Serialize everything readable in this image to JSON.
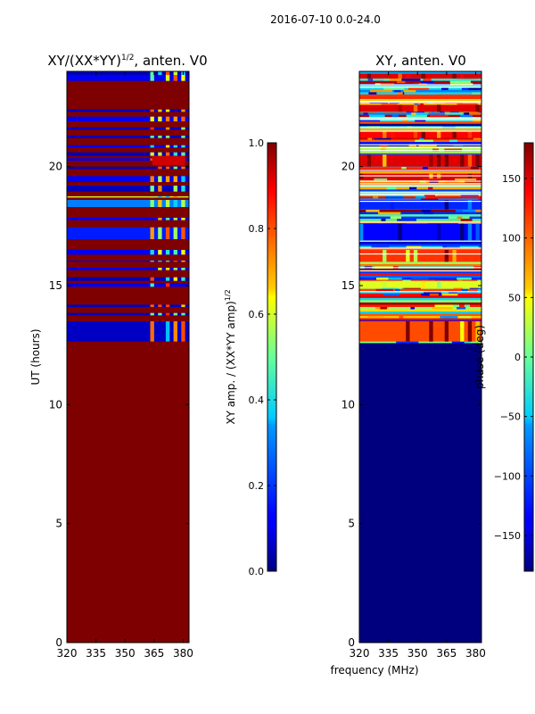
{
  "chart_data": {
    "suptitle": "2016-07-10 0.0-24.0",
    "shared_xlabel": "frequency (MHz)",
    "panels": [
      {
        "type": "heatmap",
        "title_main": "XY/(XX*YY)",
        "title_sup": "1/2",
        "title_tail": ", anten. V0",
        "ylabel": "UT (hours)",
        "xlim": [
          320,
          383
        ],
        "ylim": [
          0,
          24
        ],
        "xticks": [
          320,
          335,
          350,
          365,
          380
        ],
        "yticks": [
          0,
          5,
          10,
          15,
          20
        ],
        "background_value": 1.0,
        "bands": [
          {
            "y": [
              12.65,
              13.5
            ],
            "v": 0.06
          },
          {
            "y": [
              13.75,
              13.85
            ],
            "v": 0.05
          },
          {
            "y": [
              14.1,
              14.2
            ],
            "v": 0.05
          },
          {
            "y": [
              14.95,
              15.1
            ],
            "v": 0.1
          },
          {
            "y": [
              15.2,
              15.35
            ],
            "v": 0.05
          },
          {
            "y": [
              15.65,
              15.75
            ],
            "v": 0.1
          },
          {
            "y": [
              16.0,
              16.05
            ],
            "v": 0.1
          },
          {
            "y": [
              16.3,
              16.5
            ],
            "v": 0.1
          },
          {
            "y": [
              16.95,
              17.45
            ],
            "v": 0.15
          },
          {
            "y": [
              17.75,
              17.85
            ],
            "v": 0.1
          },
          {
            "y": [
              18.3,
              18.6
            ],
            "v": 0.3
          },
          {
            "y": [
              18.7,
              18.75
            ],
            "v": 0.6
          },
          {
            "y": [
              18.95,
              19.2
            ],
            "v": 0.05
          },
          {
            "y": [
              19.35,
              19.6
            ],
            "v": 0.1
          },
          {
            "y": [
              19.9,
              20.0
            ],
            "v": 0.05
          },
          {
            "y": [
              20.25,
              20.35
            ],
            "v": 0.1
          },
          {
            "y": [
              20.45,
              20.6
            ],
            "v": 0.05
          },
          {
            "y": [
              20.8,
              20.9
            ],
            "v": 0.1
          },
          {
            "y": [
              21.2,
              21.3
            ],
            "v": 0.05
          },
          {
            "y": [
              21.55,
              21.65
            ],
            "v": 0.05
          },
          {
            "y": [
              21.9,
              22.1
            ],
            "v": 0.1
          },
          {
            "y": [
              22.3,
              22.4
            ],
            "v": 0.05
          },
          {
            "y": [
              23.6,
              23.85
            ],
            "v": 0.1
          },
          {
            "y": [
              23.85,
              24.0
            ],
            "v": 0.05
          }
        ],
        "hot_columns": [
          364,
          368,
          372,
          376,
          380
        ],
        "hot_value": 0.6,
        "colorbar": {
          "label_main": "XY amp. / (XX*YY amp)",
          "label_sup": "1/2",
          "range": [
            0.0,
            1.0
          ],
          "ticks": [
            "0.0",
            "0.2",
            "0.4",
            "0.6",
            "0.8",
            "1.0"
          ],
          "tick_values": [
            0.0,
            0.2,
            0.4,
            0.6,
            0.8,
            1.0
          ]
        }
      },
      {
        "type": "heatmap",
        "title": "XY, anten. V0",
        "xlim": [
          320,
          383
        ],
        "ylim": [
          0,
          24
        ],
        "xticks": [
          320,
          335,
          350,
          365,
          380
        ],
        "yticks": [
          0,
          5,
          10,
          15,
          20
        ],
        "background_value": -180,
        "active_range": [
          12.6,
          24.0
        ],
        "bands": [
          {
            "y": [
              12.65,
              13.5
            ],
            "v": 110
          },
          {
            "y": [
              14.9,
              15.2
            ],
            "v": 40
          },
          {
            "y": [
              16.0,
              16.5
            ],
            "v": 120
          },
          {
            "y": [
              16.9,
              17.6
            ],
            "v": -140
          },
          {
            "y": [
              18.2,
              18.6
            ],
            "v": -120
          },
          {
            "y": [
              19.5,
              19.7
            ],
            "v": 150
          },
          {
            "y": [
              20.0,
              20.5
            ],
            "v": 150
          },
          {
            "y": [
              21.2,
              21.5
            ],
            "v": 140
          },
          {
            "y": [
              22.3,
              22.6
            ],
            "v": 150
          },
          {
            "y": [
              23.7,
              23.9
            ],
            "v": 150
          }
        ],
        "colorbar": {
          "label": "phase (deg)",
          "range": [
            -180,
            180
          ],
          "ticks": [
            "−150",
            "−100",
            "−50",
            "0",
            "50",
            "100",
            "150"
          ],
          "tick_values": [
            -150,
            -100,
            -50,
            0,
            50,
            100,
            150
          ]
        }
      }
    ]
  }
}
